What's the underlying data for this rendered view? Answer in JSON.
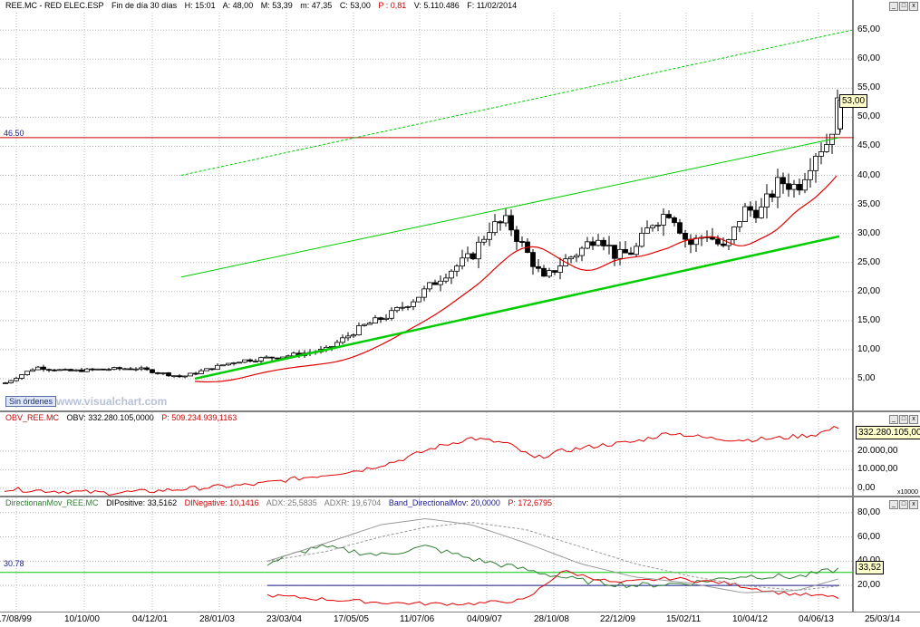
{
  "header": {
    "symbol": "REE.MC - RED ELEC.ESP",
    "period": "Fin de día 30 días",
    "H": "H: 15:01",
    "A": "A: 48,00",
    "M": "M: 53,39",
    "m": "m: 47,35",
    "C": "C: 53,00",
    "P": "P : 0,81",
    "V": "V: 5.110.486",
    "F": "F: 11/02/2014"
  },
  "price_axis": [
    "65,00",
    "60,00",
    "55,00",
    "50,00",
    "45,00",
    "40,00",
    "35,00",
    "30,00",
    "25,00",
    "20,00",
    "15,00",
    "10,00",
    "5,00"
  ],
  "price_value_box": "53,00",
  "hline_label": "46.50",
  "badge": "Sin órdenes",
  "watermark": "www.visualchart.com",
  "obv": {
    "name": "OBV_REE.MC",
    "label": "OBV: 332.280.105,0000",
    "p": "P: 509.234.939,1163",
    "axis": [
      "20.000,00",
      "10.000,00",
      "0,00"
    ],
    "value_box": "332.280.105,00",
    "scale_note": "x10000"
  },
  "dmi": {
    "name": "DirectionanMov_REE.MC",
    "dip": "DIPositive: 33,5162",
    "din": "DINegative: 10,1416",
    "adx": "ADX: 25,5835",
    "adxr": "ADXR: 19,6704",
    "band": "Band_DirectionalMov: 20,0000",
    "p": "P: 172,6795",
    "axis": [
      "80,00",
      "60,00",
      "40,00",
      "20,00"
    ],
    "value_box": "33,52",
    "hline_label": "30.78"
  },
  "x_axis": [
    "17/08/99",
    "10/10/00",
    "04/12/01",
    "28/01/03",
    "23/03/04",
    "17/05/05",
    "11/07/06",
    "04/09/07",
    "28/10/08",
    "22/12/09",
    "15/02/11",
    "10/04/12",
    "04/06/13",
    "25/03/14"
  ],
  "colors": {
    "up": "#ffffff",
    "down": "#000000",
    "ma": "#e00000",
    "channel": "#00cc00",
    "hline": "#cc0000",
    "obv": "#e00000",
    "dip": "#2e7d32",
    "din": "#e00000",
    "adx": "#999999",
    "band": "#1a1a8c"
  },
  "chart_data": [
    {
      "type": "line",
      "title": "REE.MC - RED ELEC.ESP",
      "x": [
        "17/08/99",
        "10/10/00",
        "04/12/01",
        "28/01/03",
        "23/03/04",
        "17/05/05",
        "11/07/06",
        "04/09/07",
        "28/10/08",
        "22/12/09",
        "15/02/11",
        "10/04/12",
        "04/06/13",
        "11/02/2014"
      ],
      "series": [
        {
          "name": "C",
          "values": [
            4.2,
            6.5,
            6.8,
            5.5,
            8.8,
            13.5,
            20,
            27,
            24,
            28,
            34,
            28,
            45,
            53
          ]
        }
      ],
      "ylim": [
        0,
        68
      ],
      "hline": 46.5
    },
    {
      "type": "line",
      "title": "OBV_REE.MC",
      "series": [
        {
          "name": "OBV",
          "values": [
            -500,
            -1000,
            -2500,
            -500,
            2000,
            7000,
            13000,
            27000,
            16000,
            22000,
            30000,
            27000,
            27000,
            33228
          ]
        }
      ],
      "ylim": [
        -3000,
        37000
      ]
    },
    {
      "type": "line",
      "title": "DirectionanMov_REE.MC",
      "series": [
        {
          "name": "DIPositive",
          "values": [
            38,
            52,
            47,
            40,
            22,
            20,
            30,
            25,
            33.52
          ]
        },
        {
          "name": "DINegative",
          "values": [
            12,
            8,
            6,
            5,
            32,
            22,
            24,
            12,
            10.14
          ]
        },
        {
          "name": "ADX",
          "values": [
            40,
            58,
            74,
            69,
            50,
            30,
            22,
            18,
            25.58
          ]
        }
      ],
      "hline": 30.78,
      "band": 20,
      "ylim": [
        0,
        85
      ]
    }
  ]
}
